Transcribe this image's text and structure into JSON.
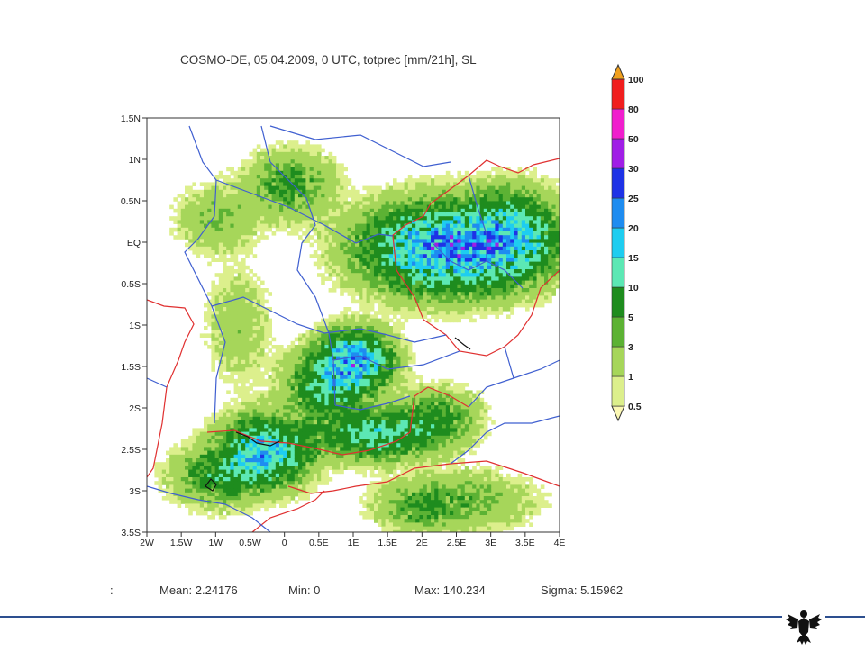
{
  "slide": {
    "title": "COSMO-DE, 05.04.2009, 0 UTC, totprec [mm/21h], SL",
    "stats": {
      "prefix": ":",
      "mean": "Mean: 2.24176",
      "min": "Min: 0",
      "max": "Max: 140.234",
      "sigma": "Sigma: 5.15962"
    },
    "logo": "federal-eagle-icon"
  },
  "chart_data": {
    "type": "heatmap",
    "title": "COSMO-DE, 05.04.2009, 0 UTC, totprec [mm/21h], SL",
    "x_ticks": [
      {
        "v": -2,
        "label": "2W"
      },
      {
        "v": -1.5,
        "label": "1.5W"
      },
      {
        "v": -1,
        "label": "1W"
      },
      {
        "v": -0.5,
        "label": "0.5W"
      },
      {
        "v": 0,
        "label": "0"
      },
      {
        "v": 0.5,
        "label": "0.5E"
      },
      {
        "v": 1,
        "label": "1E"
      },
      {
        "v": 1.5,
        "label": "1.5E"
      },
      {
        "v": 2,
        "label": "2E"
      },
      {
        "v": 2.5,
        "label": "2.5E"
      },
      {
        "v": 3,
        "label": "3E"
      },
      {
        "v": 3.5,
        "label": "3.5E"
      },
      {
        "v": 4,
        "label": "4E"
      }
    ],
    "y_ticks": [
      {
        "v": 1.5,
        "label": "1.5N"
      },
      {
        "v": 1,
        "label": "1N"
      },
      {
        "v": 0.5,
        "label": "0.5N"
      },
      {
        "v": 0,
        "label": "EQ"
      },
      {
        "v": -0.5,
        "label": "0.5S"
      },
      {
        "v": -1,
        "label": "1S"
      },
      {
        "v": -1.5,
        "label": "1.5S"
      },
      {
        "v": -2,
        "label": "2S"
      },
      {
        "v": -2.5,
        "label": "2.5S"
      },
      {
        "v": -3,
        "label": "3S"
      },
      {
        "v": -3.5,
        "label": "3.5S"
      }
    ],
    "xlim": [
      -2,
      4
    ],
    "ylim": [
      -3.5,
      1.5
    ],
    "colorbar": {
      "levels": [
        "0.5",
        "1",
        "3",
        "5",
        "10",
        "15",
        "20",
        "25",
        "30",
        "50",
        "80",
        "100"
      ],
      "colors": [
        "#fbf8b4",
        "#dcef8c",
        "#a6d65a",
        "#5cb234",
        "#1e8c1e",
        "#5ce8b4",
        "#1ecdf0",
        "#1e8cf0",
        "#1e32e6",
        "#a01ee6",
        "#f01ecd",
        "#f01e1e",
        "#f0a01e"
      ]
    },
    "stats": {
      "mean": 2.24176,
      "min": 0,
      "max": 140.234,
      "sigma": 5.15962
    }
  }
}
